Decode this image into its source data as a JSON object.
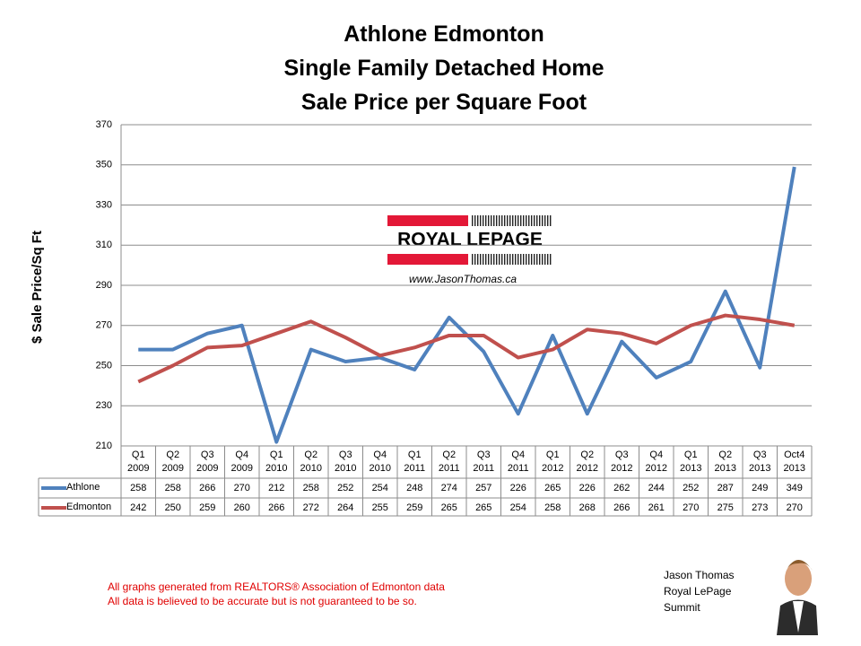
{
  "chart_data": {
    "type": "line",
    "title": [
      "Athlone Edmonton",
      "Single Family Detached Home",
      "Sale Price per Square Foot"
    ],
    "y_label": "$ Sale Price/Sq Ft",
    "categories": [
      "Q1 2009",
      "Q2 2009",
      "Q3 2009",
      "Q4 2009",
      "Q1 2010",
      "Q2 2010",
      "Q3 2010",
      "Q4 2010",
      "Q1 2011",
      "Q2 2011",
      "Q3 2011",
      "Q4 2011",
      "Q1 2012",
      "Q2 2012",
      "Q3 2012",
      "Q4 2012",
      "Q1 2013",
      "Q2 2013",
      "Q3 2013",
      "Oct4 2013"
    ],
    "series": [
      {
        "name": "Athlone",
        "color": "#4f81bd",
        "values": [
          258,
          258,
          266,
          270,
          212,
          258,
          252,
          254,
          248,
          274,
          257,
          226,
          265,
          226,
          262,
          244,
          252,
          287,
          249,
          349
        ]
      },
      {
        "name": "Edmonton",
        "color": "#c0504d",
        "values": [
          242,
          250,
          259,
          260,
          266,
          272,
          264,
          255,
          259,
          265,
          265,
          254,
          258,
          268,
          266,
          261,
          270,
          275,
          273,
          270
        ]
      }
    ],
    "ylim": [
      210,
      370
    ],
    "yticks": [
      210,
      230,
      250,
      270,
      290,
      310,
      330,
      350,
      370
    ],
    "grid": true,
    "legend": "table"
  },
  "logo": {
    "brand": "ROYAL LEPAGE",
    "website": "www.JasonThomas.ca"
  },
  "footer": {
    "notes": [
      "All graphs generated from REALTORS® Association of Edmonton data",
      "All data is believed to be accurate but is not guaranteed to be so."
    ]
  },
  "agent": {
    "lines": [
      "Jason Thomas",
      "Royal LePage",
      "Summit"
    ]
  }
}
